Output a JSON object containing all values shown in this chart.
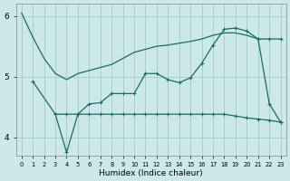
{
  "xlabel": "Humidex (Indice chaleur)",
  "background_color": "#cce8e8",
  "grid_color": "#aacfcf",
  "line_color": "#1a6b6b",
  "x_ticks": [
    0,
    1,
    2,
    3,
    4,
    5,
    6,
    7,
    8,
    9,
    10,
    11,
    12,
    13,
    14,
    15,
    16,
    17,
    18,
    19,
    20,
    21,
    22,
    23
  ],
  "ylim": [
    3.7,
    6.2
  ],
  "yticks": [
    4,
    5,
    6
  ],
  "line1_x": [
    0,
    1,
    2,
    3,
    4,
    5,
    6,
    7,
    8,
    9,
    10,
    11,
    12,
    13,
    14,
    15,
    16,
    17,
    18,
    19,
    20,
    21
  ],
  "line1_y": [
    6.05,
    5.65,
    5.3,
    5.05,
    4.95,
    5.05,
    5.1,
    5.15,
    5.2,
    5.3,
    5.4,
    5.45,
    5.5,
    5.52,
    5.55,
    5.58,
    5.62,
    5.68,
    5.72,
    5.72,
    5.68,
    5.62
  ],
  "line2_x": [
    1,
    3,
    4,
    5,
    6,
    7,
    8,
    9,
    10,
    11,
    12,
    13,
    14,
    15,
    16,
    17,
    18,
    19,
    20,
    21,
    22,
    23
  ],
  "line2_y": [
    4.92,
    4.38,
    3.75,
    4.38,
    4.55,
    4.57,
    4.72,
    4.72,
    4.72,
    5.05,
    5.05,
    4.95,
    4.9,
    4.98,
    5.22,
    5.52,
    5.78,
    5.8,
    5.75,
    5.62,
    5.62,
    5.62
  ],
  "line3_x": [
    3,
    4,
    5,
    6,
    7,
    8,
    9,
    10,
    11,
    12,
    13,
    14,
    15,
    16,
    17,
    18,
    19,
    20,
    21,
    22,
    23
  ],
  "line3_y": [
    4.38,
    4.38,
    4.38,
    4.38,
    4.38,
    4.38,
    4.38,
    4.38,
    4.38,
    4.38,
    4.38,
    4.38,
    4.38,
    4.38,
    4.38,
    4.38,
    4.35,
    4.32,
    4.3,
    4.28,
    4.25
  ],
  "line4_x": [
    21,
    22,
    23
  ],
  "line4_y": [
    5.62,
    4.55,
    4.25
  ]
}
